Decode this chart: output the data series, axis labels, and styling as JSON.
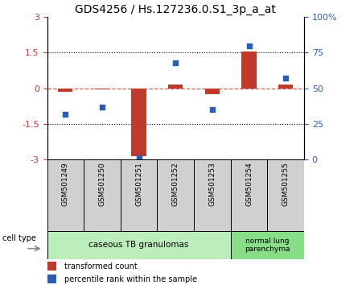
{
  "title": "GDS4256 / Hs.127236.0.S1_3p_a_at",
  "samples": [
    "GSM501249",
    "GSM501250",
    "GSM501251",
    "GSM501252",
    "GSM501253",
    "GSM501254",
    "GSM501255"
  ],
  "transformed_count": [
    -0.15,
    -0.05,
    -2.85,
    0.15,
    -0.25,
    1.55,
    0.15
  ],
  "percentile_rank": [
    32,
    37,
    1,
    68,
    35,
    80,
    57
  ],
  "ylim_left": [
    -3,
    3
  ],
  "bar_color": "#c0392b",
  "dot_color": "#2c5fb3",
  "tick_labels_left": [
    "3",
    "1.5",
    "0",
    "-1.5",
    "-3"
  ],
  "tick_values_left": [
    3,
    1.5,
    0,
    -1.5,
    -3
  ],
  "tick_labels_right": [
    "100%",
    "75",
    "50",
    "25",
    "0"
  ],
  "tick_values_right": [
    100,
    75,
    50,
    25,
    0
  ],
  "cell_type_groups": [
    {
      "label": "caseous TB granulomas",
      "span": [
        0,
        4
      ],
      "color": "#bbeebb"
    },
    {
      "label": "normal lung\nparenchyma",
      "span": [
        5,
        6
      ],
      "color": "#88dd88"
    }
  ],
  "legend_items": [
    {
      "label": "transformed count",
      "color": "#c0392b"
    },
    {
      "label": "percentile rank within the sample",
      "color": "#2c5fb3"
    }
  ],
  "cell_type_label": "cell type"
}
